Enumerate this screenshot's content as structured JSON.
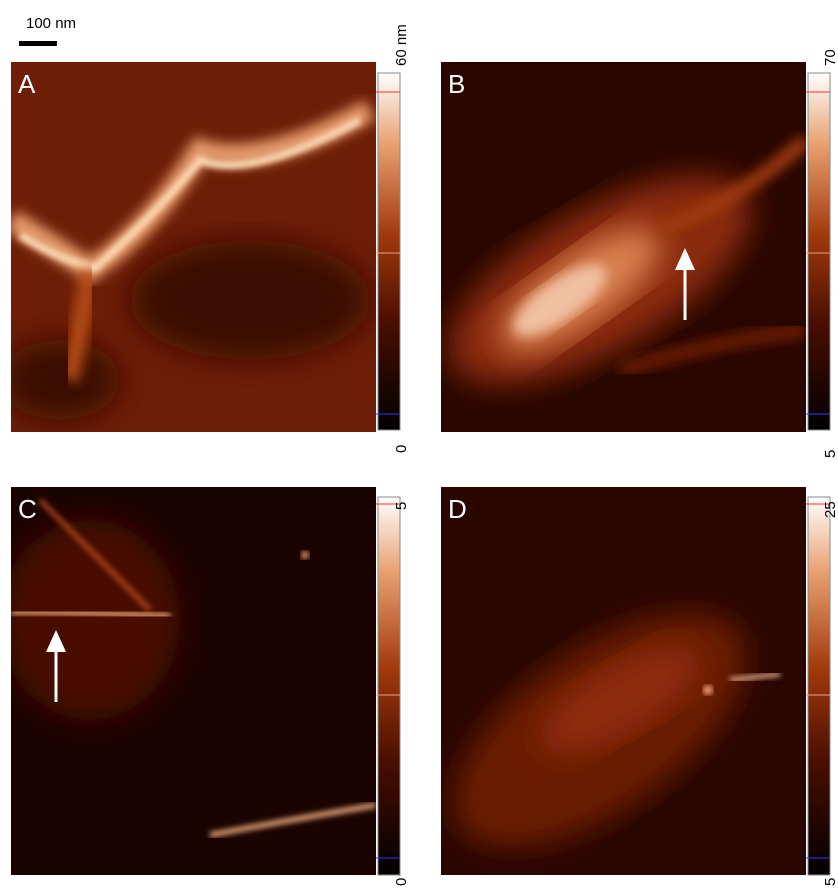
{
  "scale_bar": {
    "label": "100 nm"
  },
  "panels": [
    {
      "label": "A",
      "scale_max": "60 nm",
      "scale_min": "0"
    },
    {
      "label": "B",
      "scale_max": "70",
      "scale_min": "5"
    },
    {
      "label": "C",
      "scale_max": "5",
      "scale_min": "0"
    },
    {
      "label": "D",
      "scale_max": "25",
      "scale_min": "5"
    }
  ]
}
